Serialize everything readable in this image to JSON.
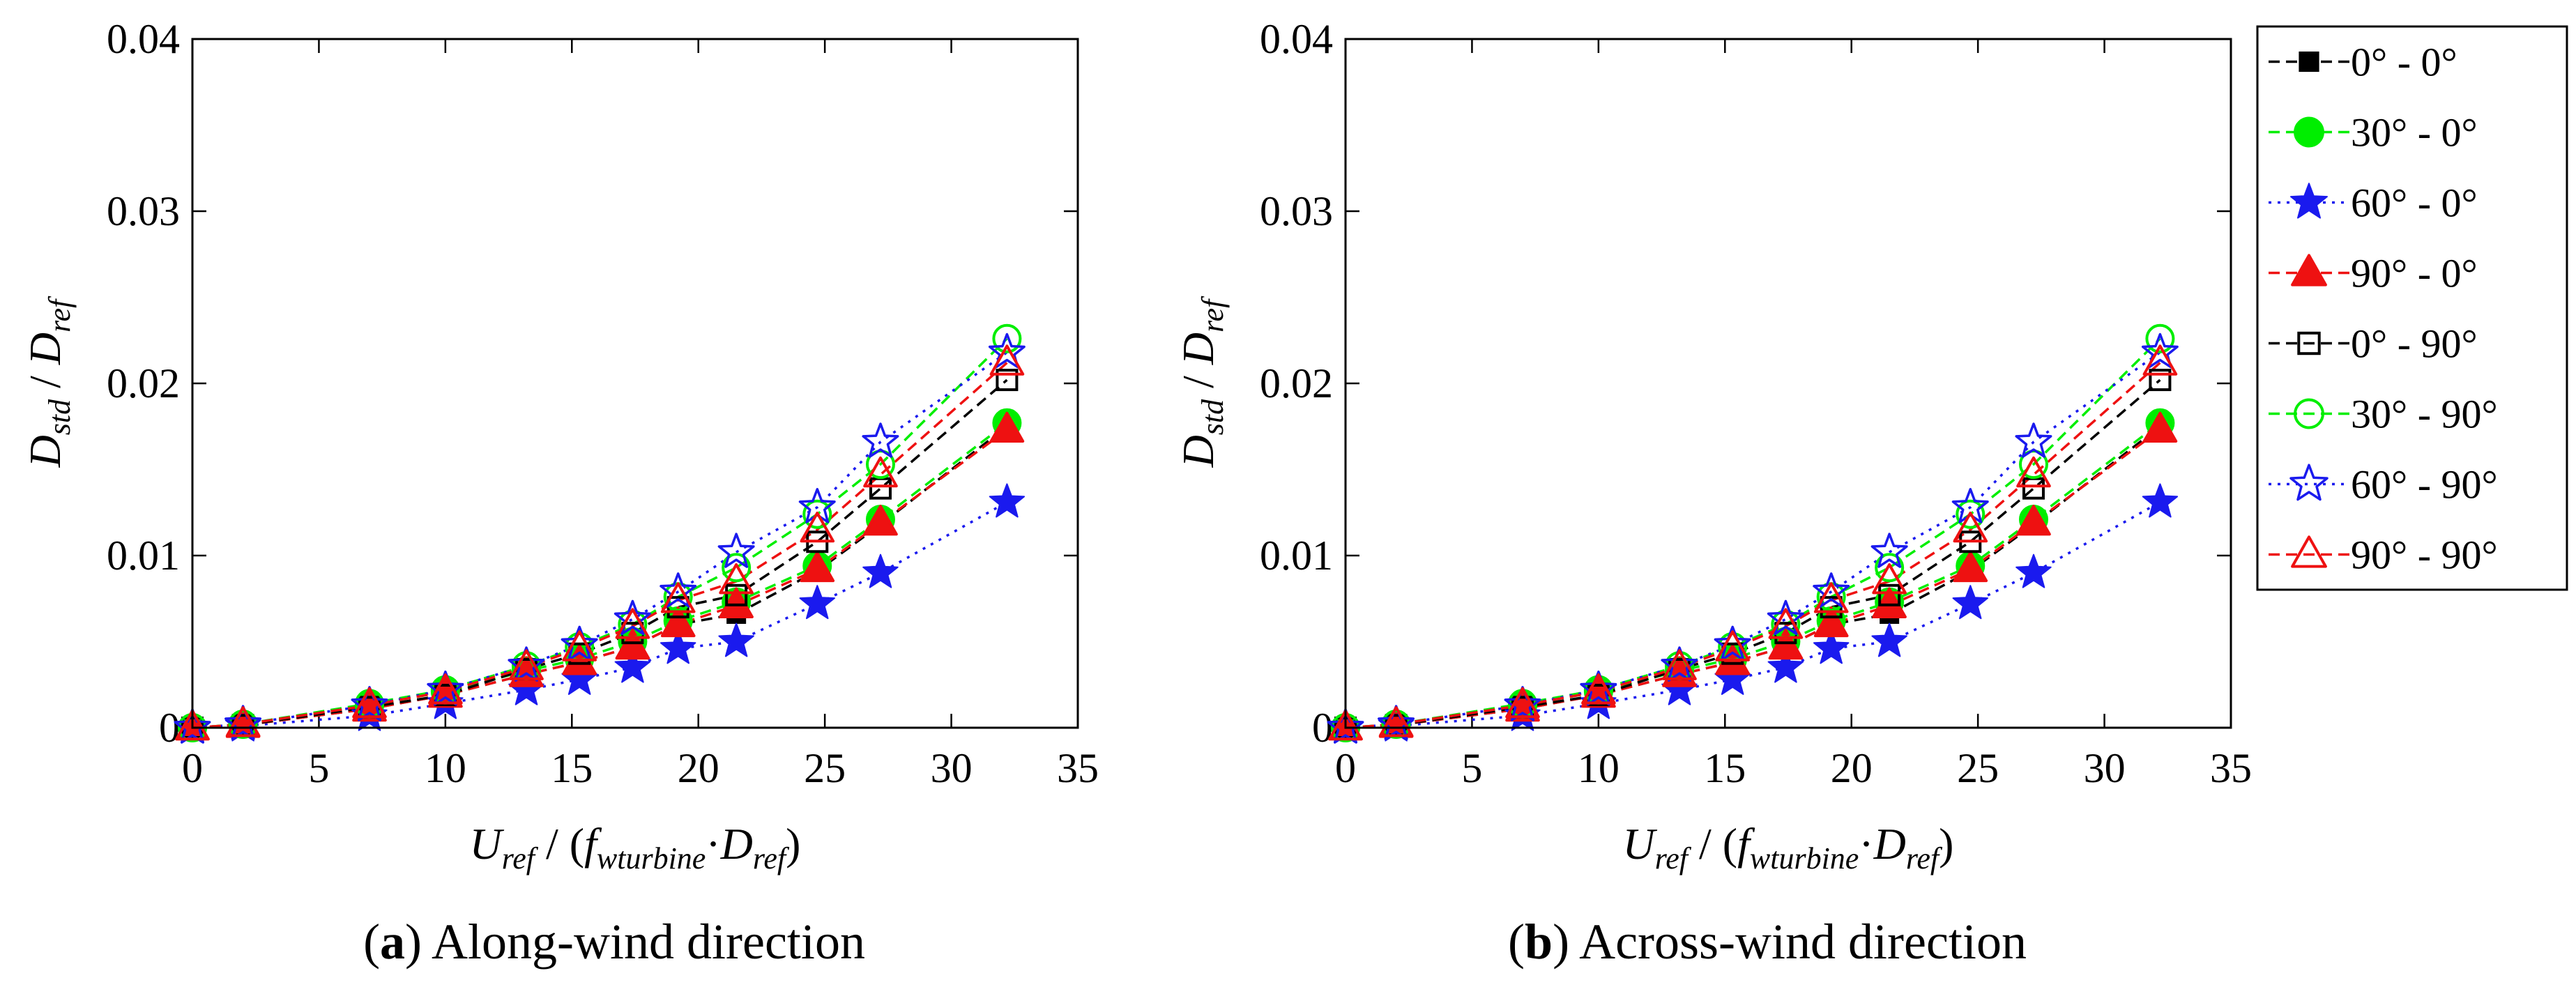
{
  "figure": {
    "legend": {
      "placement": "right",
      "entries": [
        {
          "label": "0° - 0°",
          "color": "#000000",
          "marker": "square",
          "filled": true,
          "dash": "dashed"
        },
        {
          "label": "30° - 0°",
          "color": "#00ee00",
          "marker": "circle",
          "filled": true,
          "dash": "dashed"
        },
        {
          "label": "60° - 0°",
          "color": "#1a1aee",
          "marker": "star",
          "filled": true,
          "dash": "dotted"
        },
        {
          "label": "90° - 0°",
          "color": "#ee1111",
          "marker": "triangle",
          "filled": true,
          "dash": "dashed"
        },
        {
          "label": "0° - 90°",
          "color": "#000000",
          "marker": "square",
          "filled": false,
          "dash": "dashed"
        },
        {
          "label": "30° - 90°",
          "color": "#00ee00",
          "marker": "circle",
          "filled": false,
          "dash": "dashed"
        },
        {
          "label": "60° - 90°",
          "color": "#1a1aee",
          "marker": "star",
          "filled": false,
          "dash": "dotted"
        },
        {
          "label": "90° - 90°",
          "color": "#ee1111",
          "marker": "triangle",
          "filled": false,
          "dash": "dashed"
        }
      ]
    }
  },
  "chart_data": [
    {
      "type": "line",
      "panel": "a",
      "caption_letter": "(a)",
      "caption_text": "Along-wind direction",
      "xlabel": {
        "main": "U",
        "sub": "ref",
        "mid": " / (",
        "f": "f",
        "fsub": "wturbine",
        "dot": "·",
        "d": "D",
        "dsub": "ref",
        "end": ")"
      },
      "ylabel": {
        "main": "D",
        "sub": "std",
        "mid": " / ",
        "d": "D",
        "dsub": "ref"
      },
      "xlim": [
        0,
        35
      ],
      "ylim": [
        0,
        0.04
      ],
      "xticks": [
        0,
        5,
        10,
        15,
        20,
        25,
        30,
        35
      ],
      "yticks": [
        0,
        0.01,
        0.02,
        0.03,
        0.04
      ],
      "ytick_labels": [
        "0",
        "0.01",
        "0.02",
        "0.03",
        "0.04"
      ],
      "x": [
        0,
        2,
        7,
        10,
        13.2,
        15.3,
        17.4,
        19.2,
        21.5,
        24.7,
        27.2,
        32.2
      ],
      "series": [
        {
          "name": "0° - 0°",
          "values": [
            0,
            0.00015,
            0.0011,
            0.0019,
            0.0031,
            0.0038,
            0.0047,
            0.006,
            0.0066,
            0.0091,
            0.0118,
            0.0175
          ]
        },
        {
          "name": "30° - 0°",
          "values": [
            0,
            0.0002,
            0.0013,
            0.0021,
            0.0033,
            0.004,
            0.005,
            0.0062,
            0.0073,
            0.0094,
            0.0121,
            0.0177
          ]
        },
        {
          "name": "60° - 0°",
          "values": [
            0,
            0.0001,
            0.0007,
            0.0014,
            0.0022,
            0.0028,
            0.0035,
            0.0046,
            0.005,
            0.0072,
            0.009,
            0.0131
          ]
        },
        {
          "name": "90° - 0°",
          "values": [
            0,
            0.00015,
            0.0011,
            0.0019,
            0.0031,
            0.0038,
            0.0047,
            0.006,
            0.0071,
            0.0092,
            0.0119,
            0.0173
          ]
        },
        {
          "name": "0° - 90°",
          "values": [
            0,
            0.00015,
            0.0012,
            0.0019,
            0.0034,
            0.0043,
            0.0055,
            0.007,
            0.0077,
            0.0108,
            0.0139,
            0.0202
          ]
        },
        {
          "name": "30° - 90°",
          "values": [
            0,
            0.0002,
            0.0014,
            0.0022,
            0.0036,
            0.0047,
            0.006,
            0.0076,
            0.0093,
            0.0124,
            0.0153,
            0.0226
          ]
        },
        {
          "name": "60° - 90°",
          "values": [
            0,
            0.0002,
            0.0013,
            0.0022,
            0.0036,
            0.0048,
            0.0063,
            0.0079,
            0.0102,
            0.0128,
            0.0166,
            0.0218
          ]
        },
        {
          "name": "90° - 90°",
          "values": [
            0,
            0.0002,
            0.0013,
            0.0021,
            0.0035,
            0.0046,
            0.0059,
            0.0074,
            0.0085,
            0.0115,
            0.0147,
            0.0212
          ]
        }
      ]
    },
    {
      "type": "line",
      "panel": "b",
      "caption_letter": "(b)",
      "caption_text": "Across-wind direction",
      "xlabel": {
        "main": "U",
        "sub": "ref",
        "mid": " / (",
        "f": "f",
        "fsub": "wturbine",
        "dot": "·",
        "d": "D",
        "dsub": "ref",
        "end": ")"
      },
      "ylabel": {
        "main": "D",
        "sub": "std",
        "mid": " / ",
        "d": "D",
        "dsub": "ref"
      },
      "xlim": [
        0,
        35
      ],
      "ylim": [
        0,
        0.04
      ],
      "xticks": [
        0,
        5,
        10,
        15,
        20,
        25,
        30,
        35
      ],
      "yticks": [
        0,
        0.01,
        0.02,
        0.03,
        0.04
      ],
      "ytick_labels": [
        "0",
        "0.01",
        "0.02",
        "0.03",
        "0.04"
      ],
      "x": [
        0,
        2,
        7,
        10,
        13.2,
        15.3,
        17.4,
        19.2,
        21.5,
        24.7,
        27.2,
        32.2
      ],
      "series": [
        {
          "name": "0° - 0°",
          "values": [
            0,
            0.00015,
            0.0011,
            0.0019,
            0.0031,
            0.0038,
            0.0047,
            0.006,
            0.0066,
            0.0091,
            0.0118,
            0.0175
          ]
        },
        {
          "name": "30° - 0°",
          "values": [
            0,
            0.0002,
            0.0013,
            0.0021,
            0.0033,
            0.004,
            0.005,
            0.0062,
            0.0073,
            0.0094,
            0.0121,
            0.0177
          ]
        },
        {
          "name": "60° - 0°",
          "values": [
            0,
            0.0001,
            0.0007,
            0.0014,
            0.0022,
            0.0028,
            0.0035,
            0.0046,
            0.005,
            0.0072,
            0.009,
            0.0131
          ]
        },
        {
          "name": "90° - 0°",
          "values": [
            0,
            0.00015,
            0.0011,
            0.0019,
            0.0031,
            0.0038,
            0.0047,
            0.006,
            0.0071,
            0.0092,
            0.0119,
            0.0173
          ]
        },
        {
          "name": "0° - 90°",
          "values": [
            0,
            0.00015,
            0.0012,
            0.0019,
            0.0034,
            0.0043,
            0.0055,
            0.007,
            0.0077,
            0.0108,
            0.0139,
            0.0202
          ]
        },
        {
          "name": "30° - 90°",
          "values": [
            0,
            0.0002,
            0.0014,
            0.0022,
            0.0036,
            0.0047,
            0.006,
            0.0076,
            0.0093,
            0.0124,
            0.0153,
            0.0226
          ]
        },
        {
          "name": "60° - 90°",
          "values": [
            0,
            0.0002,
            0.0013,
            0.0022,
            0.0036,
            0.0048,
            0.0063,
            0.0079,
            0.0102,
            0.0128,
            0.0166,
            0.0218
          ]
        },
        {
          "name": "90° - 90°",
          "values": [
            0,
            0.0002,
            0.0013,
            0.0021,
            0.0035,
            0.0046,
            0.0059,
            0.0074,
            0.0085,
            0.0115,
            0.0147,
            0.0212
          ]
        }
      ]
    }
  ]
}
